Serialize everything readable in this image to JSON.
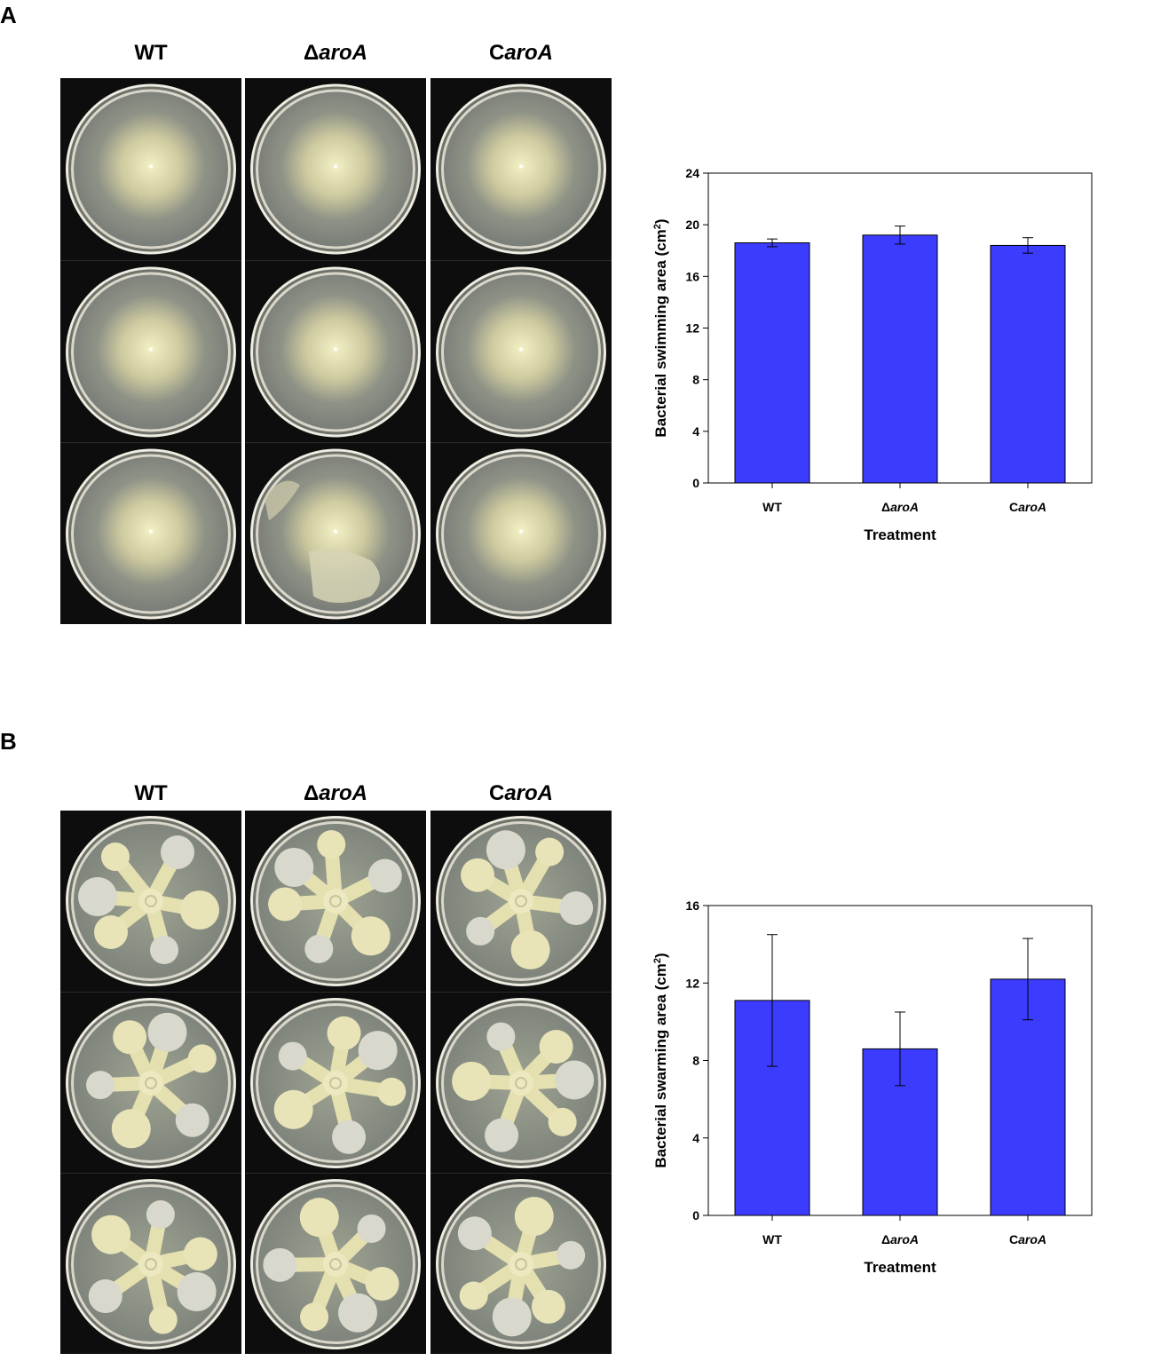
{
  "panels": [
    {
      "letter": "A",
      "columns": [
        {
          "prefix": "",
          "italic": "",
          "suffix": "WT"
        },
        {
          "prefix": "Δ",
          "italic": "aroA",
          "suffix": ""
        },
        {
          "prefix": "C",
          "italic": "aroA",
          "suffix": ""
        }
      ],
      "plates": [
        [
          "swim",
          "swim",
          "swim"
        ],
        [
          "swim",
          "swim",
          "swim"
        ],
        [
          "swim",
          "swim-irregular",
          "swim"
        ]
      ]
    },
    {
      "letter": "B",
      "columns": [
        {
          "prefix": "",
          "italic": "",
          "suffix": "WT"
        },
        {
          "prefix": "Δ",
          "italic": "aroA",
          "suffix": ""
        },
        {
          "prefix": "C",
          "italic": "aroA",
          "suffix": ""
        }
      ],
      "plates": [
        [
          "swarm",
          "swarm",
          "swarm"
        ],
        [
          "swarm",
          "swarm",
          "swarm"
        ],
        [
          "swarm",
          "swarm",
          "swarm"
        ]
      ]
    }
  ],
  "chart_data": [
    {
      "type": "bar",
      "categories": [
        {
          "prefix": "",
          "italic": "",
          "suffix": "WT"
        },
        {
          "prefix": "Δ",
          "italic": "aroA",
          "suffix": ""
        },
        {
          "prefix": "C",
          "italic": "aroA",
          "suffix": ""
        }
      ],
      "values": [
        18.6,
        19.2,
        18.4
      ],
      "errors": [
        0.3,
        0.7,
        0.6
      ],
      "xlabel": "Treatment",
      "ylabel_main": "Bacterial swimming area (cm",
      "ylabel_sup": "2",
      "ylabel_end": ")",
      "ylim": [
        0,
        24
      ],
      "yticks": [
        "0",
        "4",
        "8",
        "12",
        "16",
        "20",
        "24"
      ],
      "bar_color": "#3c3cff"
    },
    {
      "type": "bar",
      "categories": [
        {
          "prefix": "",
          "italic": "",
          "suffix": "WT"
        },
        {
          "prefix": "Δ",
          "italic": "aroA",
          "suffix": ""
        },
        {
          "prefix": "C",
          "italic": "aroA",
          "suffix": ""
        }
      ],
      "values": [
        11.1,
        8.6,
        12.2
      ],
      "errors": [
        3.4,
        1.9,
        2.1
      ],
      "xlabel": "Treatment",
      "ylabel_main": "Bacterial swarming area (cm",
      "ylabel_sup": "2",
      "ylabel_end": ")",
      "ylim": [
        0,
        16
      ],
      "yticks": [
        "0",
        "4",
        "8",
        "12",
        "16"
      ],
      "bar_color": "#3c3cff"
    }
  ]
}
